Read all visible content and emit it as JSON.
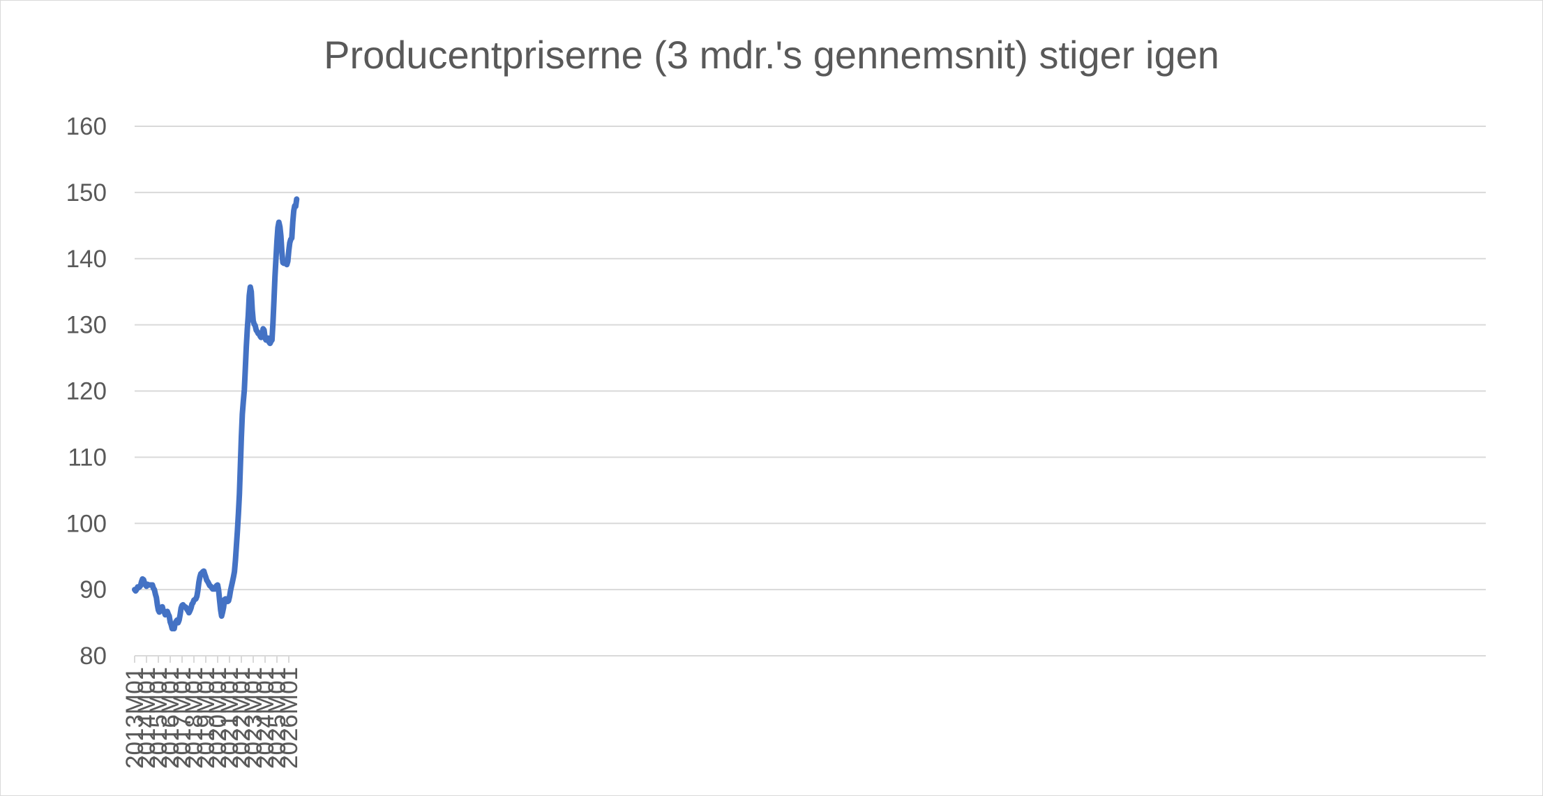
{
  "chart_data": {
    "type": "line",
    "title": "Producentpriserne (3 mdr.'s gennemsnit) stiger igen",
    "xlabel": "",
    "ylabel": "",
    "ylim": [
      80,
      160
    ],
    "yticks": [
      80,
      90,
      100,
      110,
      120,
      130,
      140,
      150,
      160
    ],
    "grid": true,
    "legend": "none",
    "line_color": "#4472C4",
    "x_tick_labels": [
      "2013M01",
      "2014M01",
      "2015M01",
      "2016M01",
      "2017M01",
      "2018M01",
      "2019M01",
      "2020M01",
      "2021M01",
      "2022M01",
      "2023M01",
      "2024M01",
      "2025M01",
      "2026M01"
    ],
    "series": [
      {
        "values": [
          90.0,
          89.8,
          90.0,
          90.4,
          90.3,
          90.4,
          90.6,
          91.2,
          91.6,
          91.5,
          91.0,
          90.7,
          90.5,
          90.8,
          90.7,
          90.7,
          90.7,
          90.7,
          90.7,
          90.2,
          90.0,
          89.3,
          88.8,
          87.7,
          86.9,
          86.6,
          87.1,
          87.3,
          87.4,
          86.8,
          86.6,
          86.2,
          86.4,
          86.7,
          86.3,
          86.0,
          85.1,
          84.7,
          84.1,
          84.2,
          84.1,
          84.9,
          85.2,
          85.4,
          85.0,
          85.4,
          86.2,
          87.2,
          87.6,
          87.7,
          87.4,
          87.4,
          87.3,
          87.0,
          86.8,
          86.5,
          86.8,
          87.2,
          87.8,
          88.0,
          88.4,
          88.5,
          88.6,
          89.0,
          89.9,
          91.1,
          91.9,
          92.4,
          92.5,
          92.7,
          92.8,
          92.3,
          91.9,
          91.4,
          91.2,
          90.9,
          90.6,
          90.5,
          90.3,
          90.1,
          90.1,
          90.1,
          90.4,
          90.6,
          90.7,
          89.9,
          88.4,
          86.9,
          86.0,
          86.6,
          87.3,
          88.5,
          88.6,
          88.5,
          88.2,
          88.3,
          88.9,
          89.8,
          90.5,
          91.2,
          91.9,
          92.7,
          94.4,
          96.6,
          98.8,
          101.5,
          104.4,
          108.7,
          113.0,
          116.5,
          118.4,
          120.2,
          123.4,
          126.7,
          129.3,
          131.4,
          134.4,
          135.7,
          135.0,
          132.3,
          130.6,
          130.1,
          129.9,
          129.2,
          129.0,
          128.7,
          128.7,
          128.3,
          128.1,
          128.6,
          129.4,
          129.2,
          128.0,
          127.7,
          127.9,
          128.0,
          127.4,
          127.2,
          127.5,
          127.7,
          130.3,
          133.8,
          137.3,
          140.0,
          142.6,
          144.7,
          145.5,
          144.8,
          143.4,
          141.0,
          139.4,
          139.3,
          139.5,
          139.6,
          139.1,
          139.6,
          141.2,
          142.4,
          142.9,
          143.1,
          145.5,
          147.2,
          148.0,
          147.9,
          149.0
        ]
      }
    ]
  }
}
